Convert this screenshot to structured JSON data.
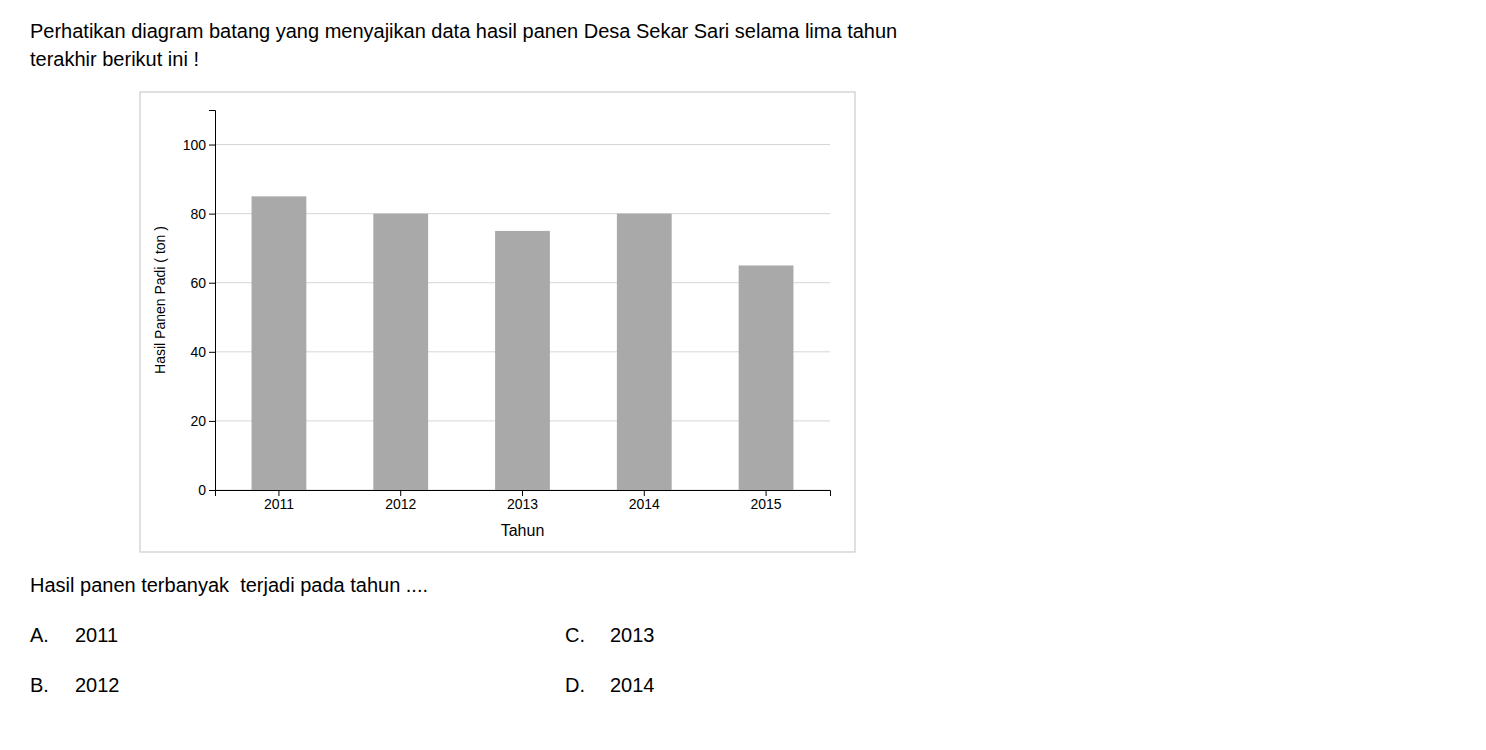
{
  "chart_data": {
    "type": "bar",
    "title": "Perhatikan diagram batang yang menyajikan data hasil panen Desa Sekar Sari selama lima tahun",
    "subtitle": "terakhir berikut ini !",
    "x_label": "Tahun",
    "y_label": "Hasil Panen Padi ( ton )",
    "categories": [
      "2011",
      "2012",
      "2013",
      "2014",
      "2015"
    ],
    "values": [
      85,
      80,
      75,
      80,
      65
    ],
    "color": "#a9a9a9",
    "ylim": [
      0,
      110
    ],
    "yticks": [
      0,
      20,
      40,
      60,
      80,
      100
    ],
    "grid": true,
    "annotations": [
      "Hasil panen terbanyak  terjadi pada tahun ....",
      "A.",
      "2011",
      "C.",
      "2013",
      "B.",
      "2012",
      "D.",
      "2014"
    ]
  }
}
